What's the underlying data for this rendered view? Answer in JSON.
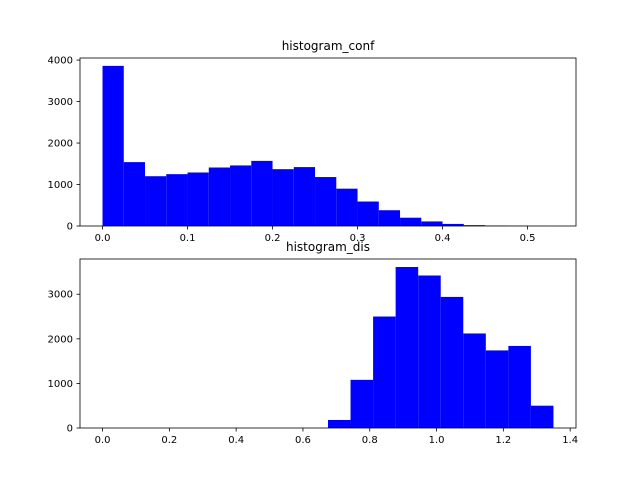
{
  "chart_data": [
    {
      "type": "bar",
      "title": "histogram_conf",
      "xlabel": "",
      "ylabel": "",
      "bar_color": "#0000ff",
      "bin_edges": [
        0.0,
        0.025,
        0.05,
        0.075,
        0.1,
        0.125,
        0.15,
        0.175,
        0.2,
        0.225,
        0.25,
        0.275,
        0.3,
        0.325,
        0.35,
        0.375,
        0.4,
        0.425,
        0.45,
        0.475,
        0.5,
        0.525
      ],
      "values": [
        3860,
        1540,
        1200,
        1250,
        1290,
        1410,
        1460,
        1570,
        1370,
        1420,
        1180,
        900,
        590,
        380,
        200,
        110,
        50,
        20,
        10,
        5,
        2
      ],
      "xlim": [
        -0.0265,
        0.557
      ],
      "ylim": [
        0,
        4050
      ],
      "xticks": [
        0.0,
        0.1,
        0.2,
        0.3,
        0.4,
        0.5
      ],
      "xtick_labels": [
        "0.0",
        "0.1",
        "0.2",
        "0.3",
        "0.4",
        "0.5"
      ],
      "yticks": [
        0,
        1000,
        2000,
        3000,
        4000
      ],
      "ytick_labels": [
        "0",
        "1000",
        "2000",
        "3000",
        "4000"
      ],
      "grid": false
    },
    {
      "type": "bar",
      "title": "histogram_dis",
      "xlabel": "",
      "ylabel": "",
      "bar_color": "#0000ff",
      "bin_edges": [
        0.675,
        0.7425,
        0.81,
        0.8775,
        0.945,
        1.0125,
        1.08,
        1.1475,
        1.215,
        1.2825,
        1.35
      ],
      "values": [
        180,
        1080,
        2500,
        3610,
        3420,
        2940,
        2120,
        1740,
        1840,
        500
      ],
      "xlim": [
        -0.0675,
        1.4175
      ],
      "ylim": [
        0,
        3790
      ],
      "xticks": [
        0.0,
        0.2,
        0.4,
        0.6,
        0.8,
        1.0,
        1.2,
        1.4
      ],
      "xtick_labels": [
        "0.0",
        "0.2",
        "0.4",
        "0.6",
        "0.8",
        "1.0",
        "1.2",
        "1.4"
      ],
      "yticks": [
        0,
        1000,
        2000,
        3000
      ],
      "ytick_labels": [
        "0",
        "1000",
        "2000",
        "3000"
      ],
      "grid": false
    }
  ]
}
